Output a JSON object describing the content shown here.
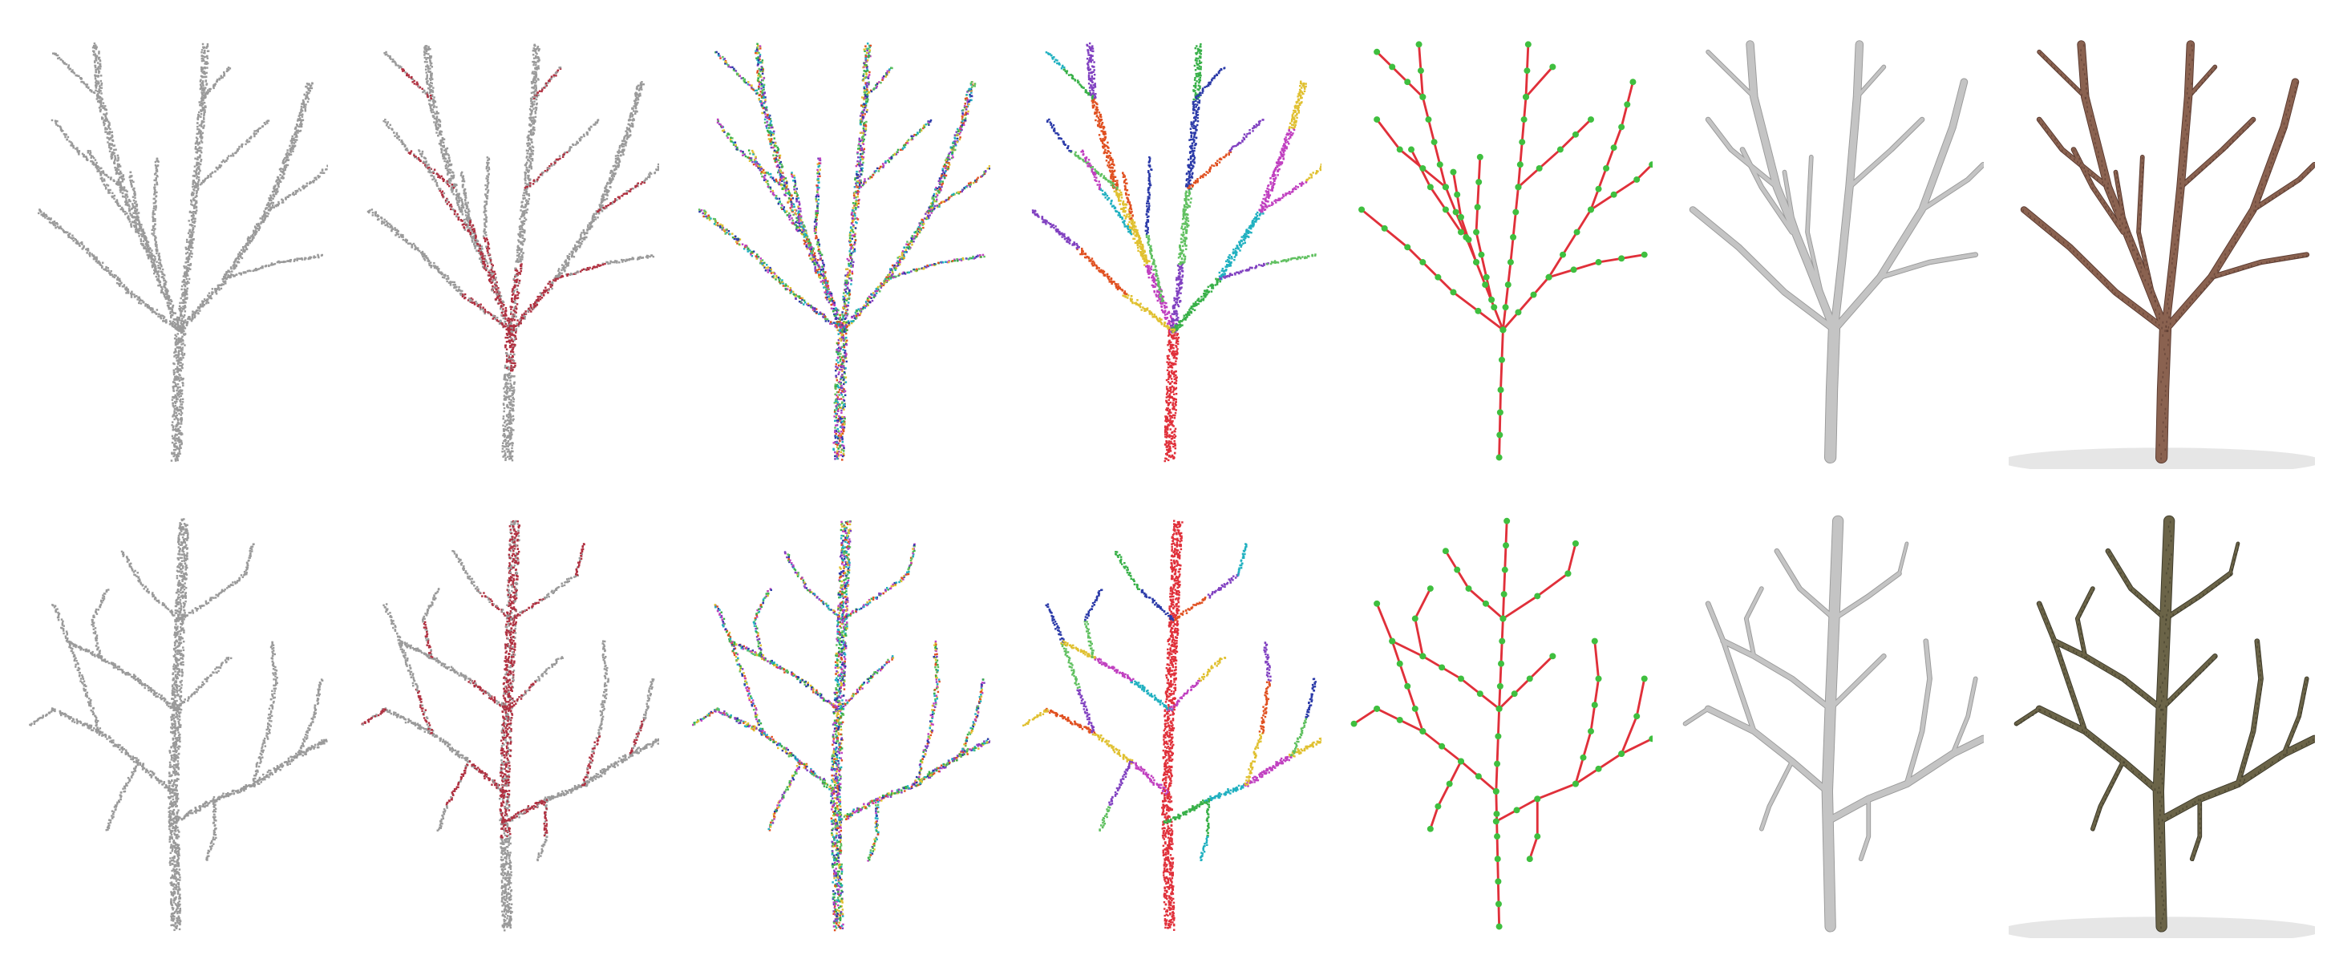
{
  "figure": {
    "rows": [
      {
        "name": "row-1",
        "tree_shape": "upright",
        "panels": [
          {
            "name": "raw-point-cloud",
            "style": "gray-points"
          },
          {
            "name": "highlighted-junction-points",
            "style": "gray-red-points"
          },
          {
            "name": "segment-clusters",
            "style": "multicolor-points"
          },
          {
            "name": "merged-branch-segments",
            "style": "branch-colored-points"
          },
          {
            "name": "skeleton-graph",
            "style": "graph"
          },
          {
            "name": "reconstructed-mesh",
            "style": "gray-mesh"
          },
          {
            "name": "textured-tree-render",
            "style": "textured-mesh"
          }
        ]
      },
      {
        "name": "row-2",
        "tree_shape": "spreading",
        "panels": [
          {
            "name": "raw-point-cloud",
            "style": "gray-points"
          },
          {
            "name": "highlighted-junction-points",
            "style": "gray-red-points"
          },
          {
            "name": "segment-clusters",
            "style": "multicolor-points"
          },
          {
            "name": "merged-branch-segments",
            "style": "branch-colored-points"
          },
          {
            "name": "skeleton-graph",
            "style": "graph"
          },
          {
            "name": "reconstructed-mesh",
            "style": "gray-mesh"
          },
          {
            "name": "textured-tree-render",
            "style": "textured-mesh"
          }
        ]
      }
    ],
    "colors": {
      "point_gray": "#9a9a9a",
      "junction_red": "#b03040",
      "graph_edge_red": "#e0303a",
      "graph_node_green": "#3fbf3f",
      "mesh_gray": "#c4c4c4",
      "bark_brown": "#8a6250",
      "bark_dark": "#3d3a2a",
      "segment_palette": [
        "#2b3aa8",
        "#38b048",
        "#20b0c0",
        "#c040c0",
        "#e0c030",
        "#e05020",
        "#8040c0",
        "#60c060"
      ]
    }
  }
}
